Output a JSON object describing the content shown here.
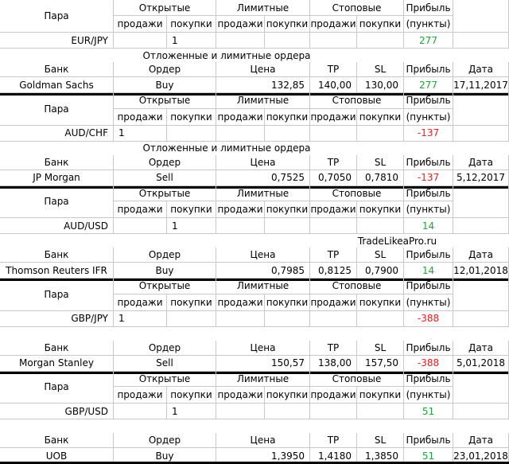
{
  "blocks": [
    {
      "pair_labels": {
        "pair": "Пара",
        "open": "Открытые",
        "limit": "Лимитные",
        "stop": "Стоповые",
        "profit": "Прибыль",
        "profit_unit": "(пункты)",
        "columns": [
          "продажи",
          "покупки",
          "продажи",
          "покупки",
          "продажи",
          "покупки"
        ]
      },
      "pair_row": {
        "name": "EUR/JPY",
        "cells": [
          null,
          1,
          null,
          null,
          null,
          null
        ],
        "profit": 277
      },
      "note": "Отложенные и лимитные ордера",
      "order_labels": {
        "bank": "Банк",
        "order": "Ордер",
        "price": "Цена",
        "tp": "TP",
        "sl": "SL",
        "profit": "Прибыль",
        "date": "Дата"
      },
      "order_row": {
        "bank": "Goldman Sachs",
        "order": "Buy",
        "price": "132,85",
        "tp": "140,00",
        "sl": "130,00",
        "profit": 277,
        "date": "17,11,2017"
      }
    },
    {
      "pair_labels": {
        "pair": "Пара",
        "open": "Открытые",
        "limit": "Лимитные",
        "stop": "Стоповые",
        "profit": "Прибыль",
        "profit_unit": "(пункты)",
        "columns": [
          "продажи",
          "покупки",
          "продажи",
          "покупки",
          "продажи",
          "покупки"
        ]
      },
      "pair_row": {
        "name": "AUD/CHF",
        "cells": [
          1,
          null,
          null,
          null,
          null,
          null
        ],
        "profit": -137
      },
      "note": "Отложенные и лимитные ордера",
      "order_labels": {
        "bank": "Банк",
        "order": "Ордер",
        "price": "Цена",
        "tp": "TP",
        "sl": "SL",
        "profit": "Прибыль",
        "date": "Дата"
      },
      "order_row": {
        "bank": "JP Morgan",
        "order": "Sell",
        "price": "0,7525",
        "tp": "0,7050",
        "sl": "0,7810",
        "profit": -137,
        "date": "5,12,2017"
      }
    },
    {
      "pair_labels": {
        "pair": "Пара",
        "open": "Открытые",
        "limit": "Лимитные",
        "stop": "Стоповые",
        "profit": "Прибыль",
        "profit_unit": "(пункты)",
        "columns": [
          "продажи",
          "покупки",
          "продажи",
          "покупки",
          "продажи",
          "покупки"
        ]
      },
      "pair_row": {
        "name": "AUD/USD",
        "cells": [
          null,
          1,
          null,
          null,
          null,
          null
        ],
        "profit": 14
      },
      "note": "TradeLikeaPro.ru",
      "order_labels": {
        "bank": "Банк",
        "order": "Ордер",
        "price": "Цена",
        "tp": "TP",
        "sl": "SL",
        "profit": "Прибыль",
        "date": "Дата"
      },
      "order_row": {
        "bank": "Thomson Reuters IFR",
        "order": "Buy",
        "price": "0,7985",
        "tp": "0,8125",
        "sl": "0,7900",
        "profit": 14,
        "date": "12,01,2018"
      }
    },
    {
      "pair_labels": {
        "pair": "Пара",
        "open": "Открытые",
        "limit": "Лимитные",
        "stop": "Стоповые",
        "profit": "Прибыль",
        "profit_unit": "(пункты)",
        "columns": [
          "продажи",
          "покупки",
          "продажи",
          "покупки",
          "продажи",
          "покупки"
        ]
      },
      "pair_row": {
        "name": "GBP/JPY",
        "cells": [
          1,
          null,
          null,
          null,
          null,
          null
        ],
        "profit": -388
      },
      "note": null,
      "order_labels": {
        "bank": "Банк",
        "order": "Ордер",
        "price": "Цена",
        "tp": "TP",
        "sl": "SL",
        "profit": "Прибыль",
        "date": "Дата"
      },
      "order_row": {
        "bank": "Morgan Stanley",
        "order": "Sell",
        "price": "150,57",
        "tp": "138,00",
        "sl": "157,50",
        "profit": -388,
        "date": "5,01,2018"
      }
    },
    {
      "pair_labels": {
        "pair": "Пара",
        "open": "Открытые",
        "limit": "Лимитные",
        "stop": "Стоповые",
        "profit": "Прибыль",
        "profit_unit": "(пункты)",
        "columns": [
          "продажи",
          "покупки",
          "продажи",
          "покупки",
          "продажи",
          "покупки"
        ]
      },
      "pair_row": {
        "name": "GBP/USD",
        "cells": [
          null,
          1,
          null,
          null,
          null,
          null
        ],
        "profit": 51
      },
      "note": null,
      "order_labels": {
        "bank": "Банк",
        "order": "Ордер",
        "price": "Цена",
        "tp": "TP",
        "sl": "SL",
        "profit": "Прибыль",
        "date": "Дата"
      },
      "order_row": {
        "bank": "UOB",
        "order": "Buy",
        "price": "1,3950",
        "tp": "1,4180",
        "sl": "1,3850",
        "profit": 51,
        "date": "23,01,2018"
      }
    }
  ]
}
